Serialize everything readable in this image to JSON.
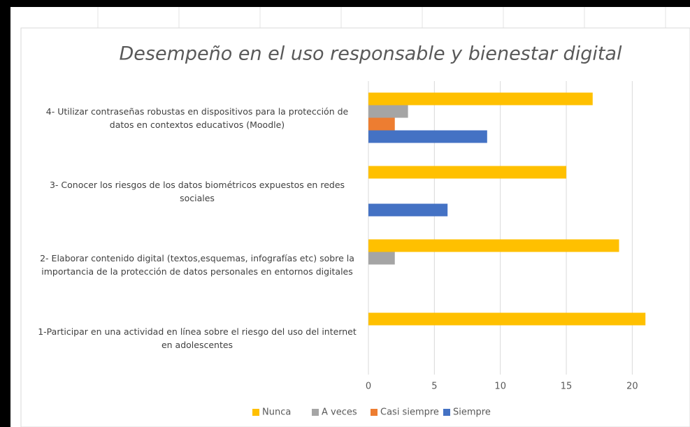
{
  "chart_data": {
    "type": "bar",
    "orientation": "horizontal",
    "title": "Desempeño en el uso responsable y bienestar digital",
    "categories": [
      "1-Participar en una actividad en línea sobre el riesgo del uso del internet en adolescentes",
      "2- Elaborar  contenido digital (textos,esquemas, infografías etc) sobre la importancia de la protección de datos personales en entornos digitales",
      "3- Conocer los riesgos de los datos biométricos expuestos en redes sociales",
      "4- Utilizar contraseñas robustas en dispositivos para la protección de datos en contextos educativos (Moodle)"
    ],
    "series": [
      {
        "name": "Nunca",
        "color": "#ffc000",
        "values": [
          21,
          19,
          15,
          17
        ]
      },
      {
        "name": "A veces",
        "color": "#a5a5a5",
        "values": [
          0,
          2,
          0,
          3
        ]
      },
      {
        "name": "Casi siempre",
        "color": "#ed7d31",
        "values": [
          0,
          0,
          0,
          2
        ]
      },
      {
        "name": "Siempre",
        "color": "#4472c4",
        "values": [
          0,
          0,
          6,
          9
        ]
      }
    ],
    "xlim": [
      0,
      23
    ],
    "xticks": [
      0,
      5,
      10,
      15,
      20
    ],
    "grid": true,
    "legend": "bottom"
  }
}
